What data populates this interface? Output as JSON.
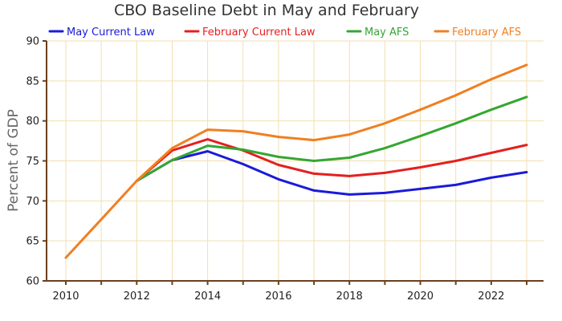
{
  "chart_data": {
    "type": "line",
    "title": "CBO Baseline Debt in May and February",
    "xlabel": "",
    "ylabel": "Percent of GDP",
    "xlim": [
      2010,
      2023
    ],
    "ylim": [
      60,
      90
    ],
    "xticks": [
      2010,
      2012,
      2014,
      2016,
      2018,
      2020,
      2022
    ],
    "yticks": [
      60,
      65,
      70,
      75,
      80,
      85,
      90
    ],
    "grid": true,
    "legend_position": "top",
    "series": [
      {
        "name": "May Current Law",
        "color": "#1a1adb",
        "x": [
          2012,
          2013,
          2014,
          2015,
          2016,
          2017,
          2018,
          2019,
          2020,
          2021,
          2022,
          2023
        ],
        "y": [
          72.5,
          75.1,
          76.2,
          74.6,
          72.7,
          71.3,
          70.8,
          71.0,
          71.5,
          72.0,
          72.9,
          73.6
        ]
      },
      {
        "name": "February Current Law",
        "color": "#e51f1f",
        "x": [
          2012,
          2013,
          2014,
          2015,
          2016,
          2017,
          2018,
          2019,
          2020,
          2021,
          2022,
          2023
        ],
        "y": [
          72.5,
          76.3,
          77.7,
          76.3,
          74.5,
          73.4,
          73.1,
          73.5,
          74.2,
          75.0,
          76.0,
          77.0
        ]
      },
      {
        "name": "May AFS",
        "color": "#35a632",
        "x": [
          2012,
          2013,
          2014,
          2015,
          2016,
          2017,
          2018,
          2019,
          2020,
          2021,
          2022,
          2023
        ],
        "y": [
          72.5,
          75.1,
          76.9,
          76.4,
          75.5,
          75.0,
          75.4,
          76.6,
          78.1,
          79.7,
          81.4,
          83.0
        ]
      },
      {
        "name": "February AFS",
        "color": "#f07f21",
        "x": [
          2010,
          2011,
          2012,
          2013,
          2014,
          2015,
          2016,
          2017,
          2018,
          2019,
          2020,
          2021,
          2022,
          2023
        ],
        "y": [
          62.9,
          67.7,
          72.5,
          76.6,
          78.9,
          78.7,
          78.0,
          77.6,
          78.3,
          79.7,
          81.4,
          83.2,
          85.2,
          87.0
        ]
      }
    ]
  }
}
